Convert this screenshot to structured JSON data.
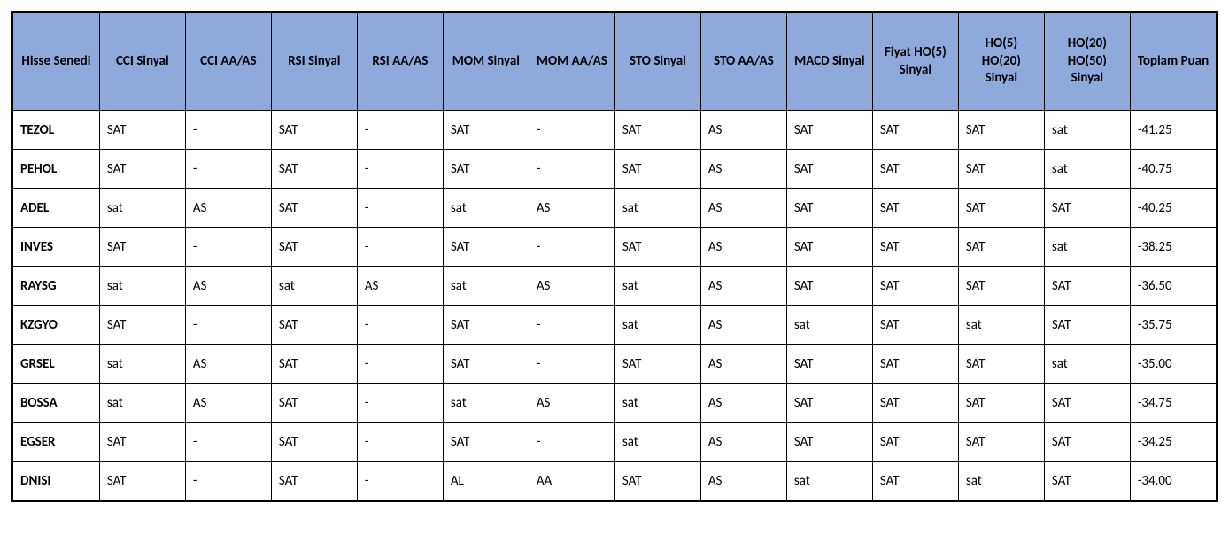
{
  "table": {
    "type": "table",
    "header_background_color": "#8ea9db",
    "header_text_color": "#000000",
    "border_color": "#000000",
    "cell_background_color": "#ffffff",
    "header_fontsize": 15,
    "cell_fontsize": 15,
    "header_font_weight": "bold",
    "ticker_font_weight": "bold",
    "columns": [
      "Hisse Senedi",
      "CCI Sinyal",
      "CCI AA/AS",
      "RSI Sinyal",
      "RSI AA/AS",
      "MOM Sinyal",
      "MOM AA/AS",
      "STO Sinyal",
      "STO AA/AS",
      "MACD Sinyal",
      "Fiyat HO(5) Sinyal",
      "HO(5) HO(20) Sinyal",
      "HO(20) HO(50) Sinyal",
      "Toplam Puan"
    ],
    "rows": [
      [
        "TEZOL",
        "SAT",
        "-",
        "SAT",
        "-",
        "SAT",
        "-",
        "SAT",
        "AS",
        "SAT",
        "SAT",
        "SAT",
        "sat",
        "-41.25"
      ],
      [
        "PEHOL",
        "SAT",
        "-",
        "SAT",
        "-",
        "SAT",
        "-",
        "SAT",
        "AS",
        "SAT",
        "SAT",
        "SAT",
        "sat",
        "-40.75"
      ],
      [
        "ADEL",
        "sat",
        "AS",
        "SAT",
        "-",
        "sat",
        "AS",
        "sat",
        "AS",
        "SAT",
        "SAT",
        "SAT",
        "SAT",
        "-40.25"
      ],
      [
        "INVES",
        "SAT",
        "-",
        "SAT",
        "-",
        "SAT",
        "-",
        "SAT",
        "AS",
        "SAT",
        "SAT",
        "SAT",
        "sat",
        "-38.25"
      ],
      [
        "RAYSG",
        "sat",
        "AS",
        "sat",
        "AS",
        "sat",
        "AS",
        "sat",
        "AS",
        "SAT",
        "SAT",
        "SAT",
        "SAT",
        "-36.50"
      ],
      [
        "KZGYO",
        "SAT",
        "-",
        "SAT",
        "-",
        "SAT",
        "-",
        "sat",
        "AS",
        "sat",
        "SAT",
        "sat",
        "SAT",
        "-35.75"
      ],
      [
        "GRSEL",
        "sat",
        "AS",
        "SAT",
        "-",
        "SAT",
        "-",
        "SAT",
        "AS",
        "SAT",
        "SAT",
        "SAT",
        "sat",
        "-35.00"
      ],
      [
        "BOSSA",
        "sat",
        "AS",
        "SAT",
        "-",
        "sat",
        "AS",
        "sat",
        "AS",
        "SAT",
        "SAT",
        "SAT",
        "SAT",
        "-34.75"
      ],
      [
        "EGSER",
        "SAT",
        "-",
        "SAT",
        "-",
        "SAT",
        "-",
        "sat",
        "AS",
        "SAT",
        "SAT",
        "SAT",
        "SAT",
        "-34.25"
      ],
      [
        "DNISI",
        "SAT",
        "-",
        "SAT",
        "-",
        "AL",
        "AA",
        "SAT",
        "AS",
        "sat",
        "SAT",
        "sat",
        "SAT",
        "-34.00"
      ]
    ]
  }
}
